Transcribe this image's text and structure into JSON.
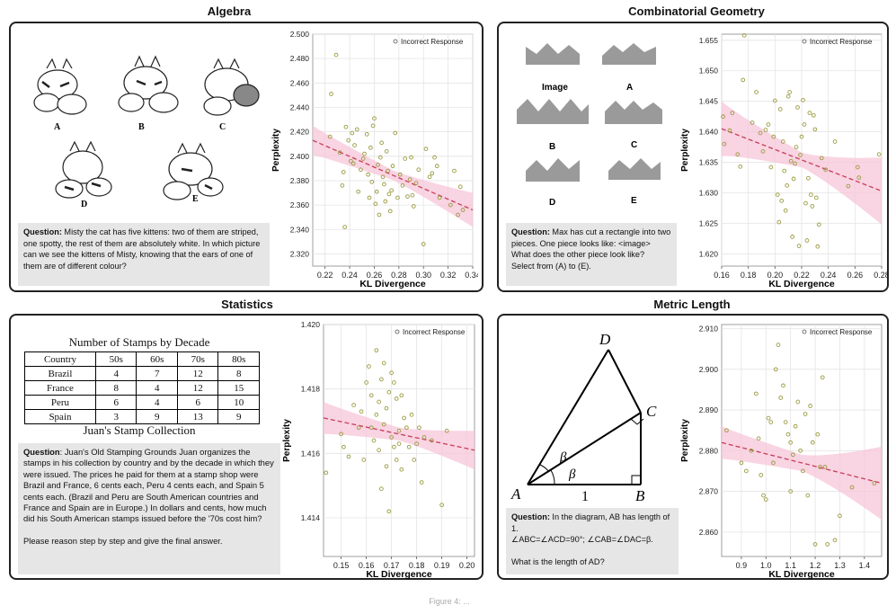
{
  "panels": {
    "algebra": {
      "title": "Algebra",
      "question_label": "Question:",
      "question_text": " Misty the cat has five kittens: two of them are striped, one spotty, the rest of them are absolutely white. In which picture can we see the kittens of Misty, knowing that the ears of one of them are of different colour?",
      "option_labels": [
        "A",
        "B",
        "C",
        "D",
        "E"
      ]
    },
    "geometry": {
      "title": "Combinatorial Geometry",
      "question_label": "Question:",
      "question_text": " Max has cut a rectangle into two pieces. One piece looks like: <image> What does the other piece look like?",
      "question_tail": "Select from (A) to (E).",
      "shape_labels": [
        "Image",
        "A",
        "B",
        "C",
        "D",
        "E"
      ]
    },
    "statistics": {
      "title": "Statistics",
      "table_title": "Number of Stamps by Decade",
      "table_headers": [
        "Country",
        "50s",
        "60s",
        "70s",
        "80s"
      ],
      "table_rows": [
        [
          "Brazil",
          "4",
          "7",
          "12",
          "8"
        ],
        [
          "France",
          "8",
          "4",
          "12",
          "15"
        ],
        [
          "Peru",
          "6",
          "4",
          "6",
          "10"
        ],
        [
          "Spain",
          "3",
          "9",
          "13",
          "9"
        ]
      ],
      "table_caption": "Juan's Stamp Collection",
      "question_label": "Question",
      "question_text": ": Juan's Old Stamping Grounds Juan organizes the stamps in his collection by country and by the decade in which they were issued. The prices he paid for them at a stamp shop were Brazil and France, 6 cents each, Peru 4 cents each, and Spain 5 cents each. (Brazil and Peru are South American countries and France and Spain are in Europe.) In dollars and cents, how much did his South American stamps issued before the '70s cost him?",
      "question_tail": "Please reason step by step and give the final answer."
    },
    "metric": {
      "title": "Metric Length",
      "diagram_labels": {
        "A": "A",
        "B": "B",
        "C": "C",
        "D": "D",
        "beta": "β",
        "one": "1"
      },
      "question_label": "Question:",
      "question_text": "  In the diagram, AB has length of 1.",
      "question_line2": "∠ABC=∠ACD=90°; ∠CAB=∠DAC=β.",
      "question_line3": "What is the length of AD?"
    }
  },
  "footer_text": "Figure 4: ...",
  "colors": {
    "points": "#9a9a40",
    "trend": "#c83c5a",
    "band": "#f7c6d8"
  },
  "chart_data": [
    {
      "id": "algebra",
      "type": "scatter",
      "xlabel": "KL Divergence",
      "ylabel": "Perplexity",
      "legend": "Incorrect Response",
      "legend_pos": "top-right",
      "xlim": [
        0.21,
        0.34
      ],
      "ylim": [
        2.31,
        2.5
      ],
      "xticks": [
        0.22,
        0.24,
        0.26,
        0.28,
        0.3,
        0.32,
        0.34
      ],
      "yticks": [
        2.32,
        2.34,
        2.36,
        2.38,
        2.4,
        2.42,
        2.44,
        2.46,
        2.48,
        2.5
      ],
      "xdec": 2,
      "ydec": 3,
      "trend": [
        [
          0.21,
          2.413
        ],
        [
          0.34,
          2.356
        ]
      ],
      "band_halfwidth": [
        0.012,
        0.004,
        0.014
      ],
      "points": [
        [
          0.225,
          2.451
        ],
        [
          0.229,
          2.483
        ],
        [
          0.224,
          2.416
        ],
        [
          0.232,
          2.403
        ],
        [
          0.234,
          2.376
        ],
        [
          0.235,
          2.387
        ],
        [
          0.236,
          2.342
        ],
        [
          0.237,
          2.424
        ],
        [
          0.239,
          2.413
        ],
        [
          0.241,
          2.396
        ],
        [
          0.242,
          2.419
        ],
        [
          0.243,
          2.394
        ],
        [
          0.244,
          2.409
        ],
        [
          0.246,
          2.422
        ],
        [
          0.247,
          2.371
        ],
        [
          0.249,
          2.389
        ],
        [
          0.251,
          2.398
        ],
        [
          0.252,
          2.402
        ],
        [
          0.254,
          2.418
        ],
        [
          0.255,
          2.385
        ],
        [
          0.256,
          2.366
        ],
        [
          0.257,
          2.407
        ],
        [
          0.258,
          2.379
        ],
        [
          0.259,
          2.425
        ],
        [
          0.26,
          2.431
        ],
        [
          0.261,
          2.361
        ],
        [
          0.262,
          2.371
        ],
        [
          0.263,
          2.393
        ],
        [
          0.264,
          2.352
        ],
        [
          0.265,
          2.399
        ],
        [
          0.266,
          2.411
        ],
        [
          0.267,
          2.383
        ],
        [
          0.268,
          2.377
        ],
        [
          0.269,
          2.363
        ],
        [
          0.27,
          2.404
        ],
        [
          0.271,
          2.388
        ],
        [
          0.272,
          2.369
        ],
        [
          0.273,
          2.355
        ],
        [
          0.274,
          2.372
        ],
        [
          0.275,
          2.392
        ],
        [
          0.277,
          2.419
        ],
        [
          0.279,
          2.366
        ],
        [
          0.281,
          2.385
        ],
        [
          0.283,
          2.376
        ],
        [
          0.285,
          2.398
        ],
        [
          0.287,
          2.367
        ],
        [
          0.289,
          2.381
        ],
        [
          0.29,
          2.399
        ],
        [
          0.291,
          2.368
        ],
        [
          0.292,
          2.359
        ],
        [
          0.294,
          2.378
        ],
        [
          0.296,
          2.389
        ],
        [
          0.3,
          2.328
        ],
        [
          0.302,
          2.406
        ],
        [
          0.305,
          2.383
        ],
        [
          0.307,
          2.386
        ],
        [
          0.309,
          2.399
        ],
        [
          0.311,
          2.392
        ],
        [
          0.313,
          2.366
        ],
        [
          0.322,
          2.36
        ],
        [
          0.325,
          2.388
        ],
        [
          0.328,
          2.352
        ],
        [
          0.33,
          2.375
        ],
        [
          0.332,
          2.356
        ]
      ]
    },
    {
      "id": "geometry",
      "type": "scatter",
      "xlabel": "KL Divergence",
      "ylabel": "Perplexity",
      "legend": "Incorrect Response",
      "legend_pos": "top-right",
      "xlim": [
        0.16,
        0.28
      ],
      "ylim": [
        1.618,
        1.656
      ],
      "xticks": [
        0.16,
        0.18,
        0.2,
        0.22,
        0.24,
        0.26,
        0.28
      ],
      "yticks": [
        1.62,
        1.625,
        1.63,
        1.635,
        1.64,
        1.645,
        1.65,
        1.655
      ],
      "xdec": 2,
      "ydec": 3,
      "trend": [
        [
          0.16,
          1.6405
        ],
        [
          0.28,
          1.6303
        ]
      ],
      "band_halfwidth": [
        0.0045,
        0.0012,
        0.0055
      ],
      "points": [
        [
          0.161,
          1.6425
        ],
        [
          0.162,
          1.638
        ],
        [
          0.166,
          1.6402
        ],
        [
          0.168,
          1.6431
        ],
        [
          0.172,
          1.6363
        ],
        [
          0.174,
          1.6343
        ],
        [
          0.176,
          1.6485
        ],
        [
          0.177,
          1.6558
        ],
        [
          0.183,
          1.6415
        ],
        [
          0.186,
          1.6465
        ],
        [
          0.189,
          1.6398
        ],
        [
          0.191,
          1.6368
        ],
        [
          0.193,
          1.6403
        ],
        [
          0.195,
          1.6412
        ],
        [
          0.197,
          1.6342
        ],
        [
          0.199,
          1.6392
        ],
        [
          0.2,
          1.6451
        ],
        [
          0.202,
          1.6297
        ],
        [
          0.203,
          1.6252
        ],
        [
          0.204,
          1.6437
        ],
        [
          0.205,
          1.6287
        ],
        [
          0.206,
          1.6384
        ],
        [
          0.207,
          1.6336
        ],
        [
          0.208,
          1.6271
        ],
        [
          0.209,
          1.6312
        ],
        [
          0.21,
          1.6458
        ],
        [
          0.211,
          1.6465
        ],
        [
          0.212,
          1.6352
        ],
        [
          0.213,
          1.6228
        ],
        [
          0.214,
          1.6323
        ],
        [
          0.215,
          1.6348
        ],
        [
          0.216,
          1.6375
        ],
        [
          0.217,
          1.644
        ],
        [
          0.218,
          1.6213
        ],
        [
          0.219,
          1.6362
        ],
        [
          0.22,
          1.6392
        ],
        [
          0.221,
          1.6452
        ],
        [
          0.222,
          1.6412
        ],
        [
          0.223,
          1.6283
        ],
        [
          0.224,
          1.6222
        ],
        [
          0.225,
          1.6324
        ],
        [
          0.226,
          1.6431
        ],
        [
          0.227,
          1.6297
        ],
        [
          0.228,
          1.6278
        ],
        [
          0.229,
          1.6427
        ],
        [
          0.23,
          1.6404
        ],
        [
          0.231,
          1.6292
        ],
        [
          0.232,
          1.6212
        ],
        [
          0.233,
          1.6248
        ],
        [
          0.235,
          1.6357
        ],
        [
          0.238,
          1.6338
        ],
        [
          0.245,
          1.6384
        ],
        [
          0.255,
          1.6311
        ],
        [
          0.262,
          1.6342
        ],
        [
          0.263,
          1.6325
        ],
        [
          0.278,
          1.6363
        ]
      ]
    },
    {
      "id": "statistics",
      "type": "scatter",
      "xlabel": "KL Divergence",
      "ylabel": "Perplexity",
      "legend": "Incorrect Response",
      "legend_pos": "top-right",
      "xlim": [
        0.143,
        0.203
      ],
      "ylim": [
        1.4128,
        1.42
      ],
      "xticks": [
        0.15,
        0.16,
        0.17,
        0.18,
        0.19,
        0.2
      ],
      "yticks": [
        1.414,
        1.416,
        1.418,
        1.42
      ],
      "xdec": 2,
      "ydec": 3,
      "trend": [
        [
          0.143,
          1.4171
        ],
        [
          0.203,
          1.4161
        ]
      ],
      "band_halfwidth": [
        0.0005,
        0.0002,
        0.0006
      ],
      "points": [
        [
          0.144,
          1.4154
        ],
        [
          0.15,
          1.4166
        ],
        [
          0.151,
          1.4162
        ],
        [
          0.153,
          1.4159
        ],
        [
          0.155,
          1.4175
        ],
        [
          0.157,
          1.4168
        ],
        [
          0.158,
          1.4173
        ],
        [
          0.159,
          1.4158
        ],
        [
          0.16,
          1.4182
        ],
        [
          0.161,
          1.4187
        ],
        [
          0.162,
          1.4178
        ],
        [
          0.162,
          1.4168
        ],
        [
          0.163,
          1.4164
        ],
        [
          0.164,
          1.4192
        ],
        [
          0.164,
          1.4172
        ],
        [
          0.165,
          1.4176
        ],
        [
          0.165,
          1.4161
        ],
        [
          0.166,
          1.4183
        ],
        [
          0.166,
          1.4149
        ],
        [
          0.167,
          1.4188
        ],
        [
          0.167,
          1.4169
        ],
        [
          0.168,
          1.4174
        ],
        [
          0.168,
          1.4156
        ],
        [
          0.169,
          1.4179
        ],
        [
          0.169,
          1.4142
        ],
        [
          0.17,
          1.4185
        ],
        [
          0.17,
          1.4165
        ],
        [
          0.171,
          1.4182
        ],
        [
          0.171,
          1.4162
        ],
        [
          0.172,
          1.4177
        ],
        [
          0.172,
          1.4158
        ],
        [
          0.173,
          1.4167
        ],
        [
          0.173,
          1.4163
        ],
        [
          0.174,
          1.4178
        ],
        [
          0.174,
          1.4155
        ],
        [
          0.175,
          1.4171
        ],
        [
          0.176,
          1.4168
        ],
        [
          0.177,
          1.4162
        ],
        [
          0.178,
          1.4172
        ],
        [
          0.179,
          1.4158
        ],
        [
          0.18,
          1.4163
        ],
        [
          0.181,
          1.4168
        ],
        [
          0.182,
          1.4151
        ],
        [
          0.183,
          1.4165
        ],
        [
          0.186,
          1.4164
        ],
        [
          0.19,
          1.4144
        ],
        [
          0.192,
          1.4167
        ]
      ]
    },
    {
      "id": "metric",
      "type": "scatter",
      "xlabel": "KL Divergence",
      "ylabel": "Perplexity",
      "legend": "Incorrect Response",
      "legend_pos": "top-right",
      "xlim": [
        0.82,
        1.47
      ],
      "ylim": [
        2.854,
        2.911
      ],
      "xticks": [
        0.9,
        1.0,
        1.1,
        1.2,
        1.3,
        1.4
      ],
      "yticks": [
        2.86,
        2.87,
        2.88,
        2.89,
        2.9,
        2.91
      ],
      "xdec": 1,
      "ydec": 3,
      "trend": [
        [
          0.82,
          2.882
        ],
        [
          1.47,
          2.872
        ]
      ],
      "band_halfwidth": [
        0.004,
        0.002,
        0.009
      ],
      "points": [
        [
          0.84,
          2.885
        ],
        [
          0.9,
          2.877
        ],
        [
          0.92,
          2.875
        ],
        [
          0.94,
          2.88
        ],
        [
          0.96,
          2.894
        ],
        [
          0.97,
          2.883
        ],
        [
          0.98,
          2.874
        ],
        [
          0.99,
          2.869
        ],
        [
          1.0,
          2.868
        ],
        [
          1.01,
          2.888
        ],
        [
          1.02,
          2.887
        ],
        [
          1.03,
          2.877
        ],
        [
          1.04,
          2.9
        ],
        [
          1.05,
          2.906
        ],
        [
          1.06,
          2.893
        ],
        [
          1.07,
          2.896
        ],
        [
          1.08,
          2.887
        ],
        [
          1.09,
          2.884
        ],
        [
          1.1,
          2.87
        ],
        [
          1.1,
          2.882
        ],
        [
          1.11,
          2.879
        ],
        [
          1.12,
          2.886
        ],
        [
          1.13,
          2.892
        ],
        [
          1.14,
          2.88
        ],
        [
          1.15,
          2.875
        ],
        [
          1.16,
          2.889
        ],
        [
          1.17,
          2.869
        ],
        [
          1.18,
          2.891
        ],
        [
          1.19,
          2.882
        ],
        [
          1.2,
          2.857
        ],
        [
          1.21,
          2.884
        ],
        [
          1.22,
          2.876
        ],
        [
          1.23,
          2.898
        ],
        [
          1.24,
          2.876
        ],
        [
          1.25,
          2.857
        ],
        [
          1.28,
          2.858
        ],
        [
          1.3,
          2.864
        ],
        [
          1.35,
          2.871
        ],
        [
          1.44,
          2.872
        ]
      ]
    }
  ]
}
